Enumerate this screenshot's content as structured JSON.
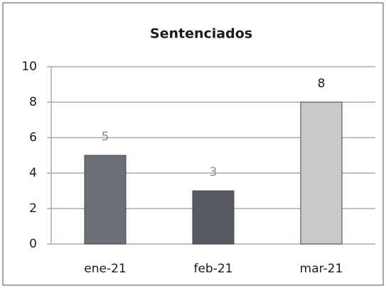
{
  "chart_data": {
    "type": "bar",
    "title": "Sentenciados",
    "categories": [
      "ene-21",
      "feb-21",
      "mar-21"
    ],
    "values": [
      5,
      3,
      8
    ],
    "colors": [
      "#6b6f78",
      "#555962",
      "#c9c9c9"
    ],
    "ylim": [
      0,
      10
    ],
    "yticks": [
      0,
      2,
      4,
      6,
      8,
      10
    ],
    "grid": true
  }
}
